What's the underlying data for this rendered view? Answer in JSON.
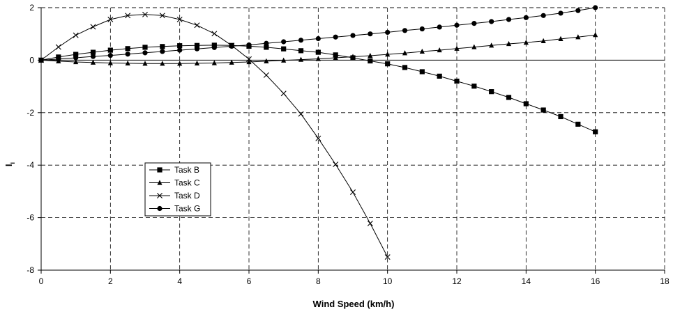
{
  "chart_data": {
    "type": "line",
    "xlabel": "Wind Speed (km/h)",
    "ylabel": "I",
    "ylabel_subscript": "i",
    "xlim": [
      0,
      18
    ],
    "ylim": [
      -8,
      2
    ],
    "x_ticks": [
      "0",
      "2",
      "4",
      "6",
      "8",
      "10",
      "12",
      "14",
      "16",
      "18"
    ],
    "y_ticks": [
      "2",
      "0",
      "-2",
      "-4",
      "-6",
      "-8"
    ],
    "grid": true,
    "legend_position": "lower-left",
    "series": [
      {
        "name": "Task B",
        "marker": "square",
        "x": [
          0,
          0.5,
          1,
          1.5,
          2,
          2.5,
          3,
          3.5,
          4,
          4.5,
          5,
          5.5,
          6,
          6.5,
          7,
          7.5,
          8,
          8.5,
          9,
          9.5,
          10,
          10.5,
          11,
          11.5,
          12,
          12.5,
          13,
          13.5,
          14,
          14.5,
          15,
          15.5,
          16
        ],
        "y": [
          0,
          0.12,
          0.22,
          0.3,
          0.38,
          0.44,
          0.49,
          0.52,
          0.55,
          0.56,
          0.57,
          0.56,
          0.53,
          0.49,
          0.43,
          0.36,
          0.3,
          0.2,
          0.09,
          -0.03,
          -0.14,
          -0.28,
          -0.44,
          -0.61,
          -0.8,
          -0.99,
          -1.2,
          -1.42,
          -1.66,
          -1.9,
          -2.15,
          -2.44,
          -2.73
        ]
      },
      {
        "name": "Task C",
        "marker": "triangle",
        "x": [
          0,
          0.5,
          1,
          1.5,
          2,
          2.5,
          3,
          3.5,
          4,
          4.5,
          5,
          5.5,
          6,
          6.5,
          7,
          7.5,
          8,
          8.5,
          9,
          9.5,
          10,
          10.5,
          11,
          11.5,
          12,
          12.5,
          13,
          13.5,
          14,
          14.5,
          15,
          15.5,
          16
        ],
        "y": [
          0,
          -0.04,
          -0.07,
          -0.09,
          -0.11,
          -0.12,
          -0.13,
          -0.13,
          -0.13,
          -0.12,
          -0.11,
          -0.09,
          -0.07,
          -0.04,
          -0.01,
          0.02,
          0.05,
          0.09,
          0.13,
          0.17,
          0.22,
          0.27,
          0.33,
          0.38,
          0.44,
          0.5,
          0.56,
          0.62,
          0.67,
          0.73,
          0.81,
          0.88,
          0.96
        ]
      },
      {
        "name": "Task D",
        "marker": "x",
        "x": [
          0,
          0.5,
          1,
          1.5,
          2,
          2.5,
          3,
          3.5,
          4,
          4.5,
          5,
          5.5,
          6,
          6.5,
          7,
          7.5,
          8,
          8.5,
          9,
          9.5,
          10
        ],
        "y": [
          0,
          0.5,
          0.95,
          1.27,
          1.55,
          1.7,
          1.74,
          1.7,
          1.55,
          1.33,
          1.01,
          0.56,
          0.04,
          -0.57,
          -1.27,
          -2.05,
          -2.98,
          -3.97,
          -5.03,
          -6.22,
          -7.5
        ]
      },
      {
        "name": "Task G",
        "marker": "circle",
        "x": [
          0,
          0.5,
          1,
          1.5,
          2,
          2.5,
          3,
          3.5,
          4,
          4.5,
          5,
          5.5,
          6,
          6.5,
          7,
          7.5,
          8,
          8.5,
          9,
          9.5,
          10,
          10.5,
          11,
          11.5,
          12,
          12.5,
          13,
          13.5,
          14,
          14.5,
          15,
          15.5,
          16
        ],
        "y": [
          0,
          0.04,
          0.09,
          0.14,
          0.18,
          0.23,
          0.28,
          0.33,
          0.38,
          0.43,
          0.48,
          0.53,
          0.58,
          0.64,
          0.7,
          0.76,
          0.82,
          0.88,
          0.94,
          1.0,
          1.06,
          1.13,
          1.19,
          1.26,
          1.33,
          1.4,
          1.47,
          1.55,
          1.62,
          1.7,
          1.79,
          1.89,
          2.0
        ]
      }
    ]
  }
}
